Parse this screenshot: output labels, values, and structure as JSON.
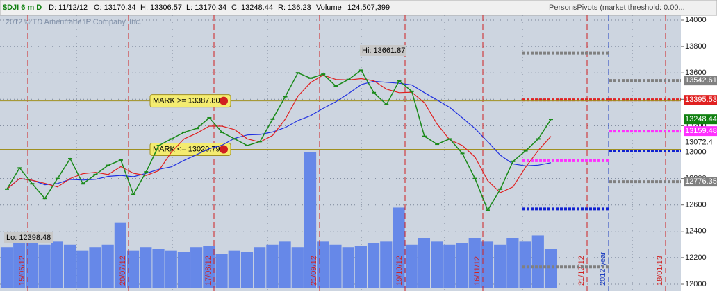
{
  "header": {
    "symbol": "$DJI 6 m D",
    "date": "D: 11/12/12",
    "open": "O: 13170.34",
    "high": "H: 13306.57",
    "low": "L: 13170.34",
    "close": "C: 13248.44",
    "range": "R: 136.23",
    "volume_label": "Volume",
    "volume": "124,507,399",
    "study": "PersonsPivots (market threshold: 0.00..."
  },
  "chart_data": {
    "type": "line",
    "copyright": "2012 © TD Ameritrade IP Company, Inc.",
    "ylim": [
      12000,
      14000
    ],
    "yticks": [
      12000,
      12200,
      12400,
      12600,
      12800,
      13000,
      13200,
      13400,
      13600,
      13800,
      14000
    ],
    "grid": true,
    "color": "#1a8a1a",
    "ma_fast_color": "#e02020",
    "ma_slow_color": "#2030e0",
    "values": [
      12720,
      12880,
      12760,
      12650,
      12800,
      12950,
      12760,
      12830,
      12900,
      12940,
      12680,
      12850,
      13050,
      13100,
      13150,
      13180,
      13260,
      13150,
      13100,
      13050,
      13080,
      13250,
      13420,
      13600,
      13560,
      13590,
      13500,
      13550,
      13620,
      13450,
      13360,
      13540,
      13460,
      13120,
      13060,
      13100,
      12990,
      12800,
      12560,
      12720,
      12930,
      13010,
      13100,
      13248.44
    ],
    "volume": [
      130,
      150,
      180,
      140,
      150,
      140,
      120,
      130,
      140,
      210,
      120,
      130,
      125,
      120,
      115,
      130,
      135,
      110,
      120,
      115,
      130,
      140,
      150,
      130,
      440,
      150,
      140,
      130,
      135,
      145,
      150,
      260,
      140,
      160,
      150,
      140,
      145,
      160,
      150,
      140,
      160,
      150,
      170,
      125
    ],
    "volume_lim": [
      0,
      450
    ],
    "volume_color": "#6688e8",
    "date_labels": [
      "15/06/12",
      "20/07/12",
      "17/08/12",
      "21/09/12",
      "19/10/12",
      "16/11/12",
      "21/12/12",
      "2012 year",
      "18/01/13"
    ],
    "marks": [
      {
        "value": 13387.8,
        "label": "MARK >= 13387.80"
      },
      {
        "value": 13020.79,
        "label": "MARK <= 13020.79"
      }
    ],
    "hi_label": "Hi: 13661.87",
    "lo_label": "Lo: 12398.48",
    "pivots_current": [
      {
        "value": 13750,
        "color": "#808080"
      },
      {
        "value": 13395.53,
        "color": "#e02020"
      },
      {
        "value": 12935,
        "color": "#ff30ff"
      },
      {
        "value": 12570,
        "color": "#1020d0"
      },
      {
        "value": 12130,
        "color": "#808080"
      }
    ],
    "pivots_next": [
      {
        "value": 13542.61,
        "color": "#808080"
      },
      {
        "value": 13395.53,
        "color": "#e02020"
      },
      {
        "value": 13159.48,
        "color": "#ff30ff"
      },
      {
        "value": 13010,
        "color": "#1020d0"
      },
      {
        "value": 12776.35,
        "color": "#808080"
      }
    ],
    "price_labels": [
      {
        "value": 13542.61,
        "label": "13542.61",
        "color": "#808080"
      },
      {
        "value": 13395.53,
        "label": "13395.53",
        "color": "#e02020"
      },
      {
        "value": 13248.44,
        "label": "13248.44",
        "color": "#108010"
      },
      {
        "value": 13159.48,
        "label": "13159.48",
        "color": "#ff30ff"
      },
      {
        "value": 13072.4,
        "label": "13072.4",
        "color": "#ffffff"
      },
      {
        "value": 12776.35,
        "label": "12776.35",
        "color": "#808080"
      }
    ]
  }
}
